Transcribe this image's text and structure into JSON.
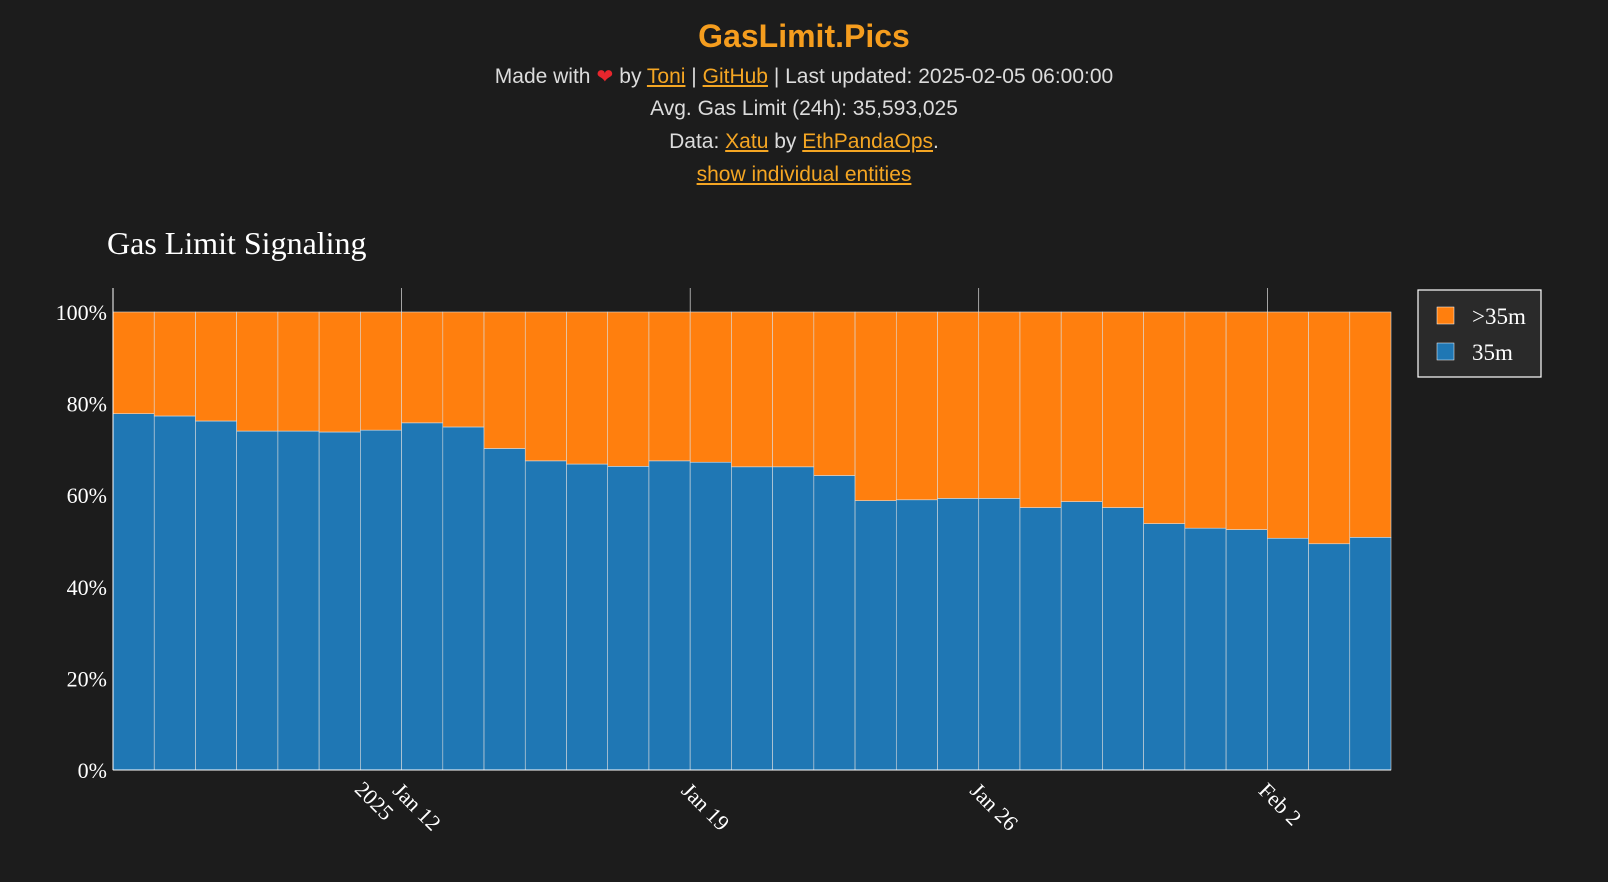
{
  "site": {
    "title": "GasLimit.Pics",
    "made_with": "Made with",
    "by": "by",
    "author_link": "Toni",
    "sep1": "|",
    "github_link": "GitHub",
    "last_updated": "| Last updated: 2025-02-05 06:00:00",
    "avg_gas": "Avg. Gas Limit (24h): 35,593,025",
    "data_prefix": "Data:",
    "data_source_link": "Xatu",
    "data_by": "by",
    "data_org_link": "EthPandaOps",
    "data_suffix": ".",
    "toggle_link": "show individual entities",
    "heart_icon": "heart-icon",
    "heart_color": "#e8262d",
    "accent_color": "#f59d1e"
  },
  "chart_data": {
    "type": "bar",
    "stacked": true,
    "normalized": true,
    "title": "Gas Limit Signaling",
    "xlabel": "",
    "ylabel": "",
    "ylim": [
      0,
      100
    ],
    "y_ticks": [
      "0%",
      "20%",
      "40%",
      "60%",
      "80%",
      "100%"
    ],
    "x_ticks": [
      {
        "label": "Jan 12",
        "sub": "2025"
      },
      {
        "label": "Jan 19",
        "sub": ""
      },
      {
        "label": "Jan 26",
        "sub": ""
      },
      {
        "label": "Feb 2",
        "sub": ""
      }
    ],
    "categories": [
      "2025-01-05",
      "2025-01-06",
      "2025-01-07",
      "2025-01-08",
      "2025-01-09",
      "2025-01-10",
      "2025-01-11",
      "2025-01-12",
      "2025-01-13",
      "2025-01-14",
      "2025-01-15",
      "2025-01-16",
      "2025-01-17",
      "2025-01-18",
      "2025-01-19",
      "2025-01-20",
      "2025-01-21",
      "2025-01-22",
      "2025-01-23",
      "2025-01-24",
      "2025-01-25",
      "2025-01-26",
      "2025-01-27",
      "2025-01-28",
      "2025-01-29",
      "2025-01-30",
      "2025-01-31",
      "2025-02-01",
      "2025-02-02",
      "2025-02-03",
      "2025-02-04"
    ],
    "series": [
      {
        "name": "35m",
        "color": "#1f77b4",
        "values": [
          77.8,
          77.3,
          76.2,
          74.0,
          74.0,
          73.8,
          74.2,
          75.8,
          74.9,
          70.2,
          67.5,
          66.8,
          66.3,
          67.5,
          67.2,
          66.2,
          66.2,
          64.3,
          58.8,
          59.0,
          59.3,
          59.3,
          57.3,
          58.6,
          57.3,
          53.8,
          52.8,
          52.5,
          50.6,
          49.4,
          50.8
        ]
      },
      {
        "name": ">35m",
        "color": "#ff7f0e",
        "values": [
          22.2,
          22.7,
          23.8,
          26.0,
          26.0,
          26.2,
          25.8,
          24.2,
          25.1,
          29.8,
          32.5,
          33.2,
          33.7,
          32.5,
          32.8,
          33.8,
          33.8,
          35.7,
          41.2,
          41.0,
          40.7,
          40.7,
          42.7,
          41.4,
          42.7,
          46.2,
          47.2,
          47.5,
          49.4,
          50.6,
          49.2
        ]
      }
    ],
    "legend": {
      "placement": "top-right",
      "items": [
        ">35m",
        "35m"
      ]
    }
  }
}
